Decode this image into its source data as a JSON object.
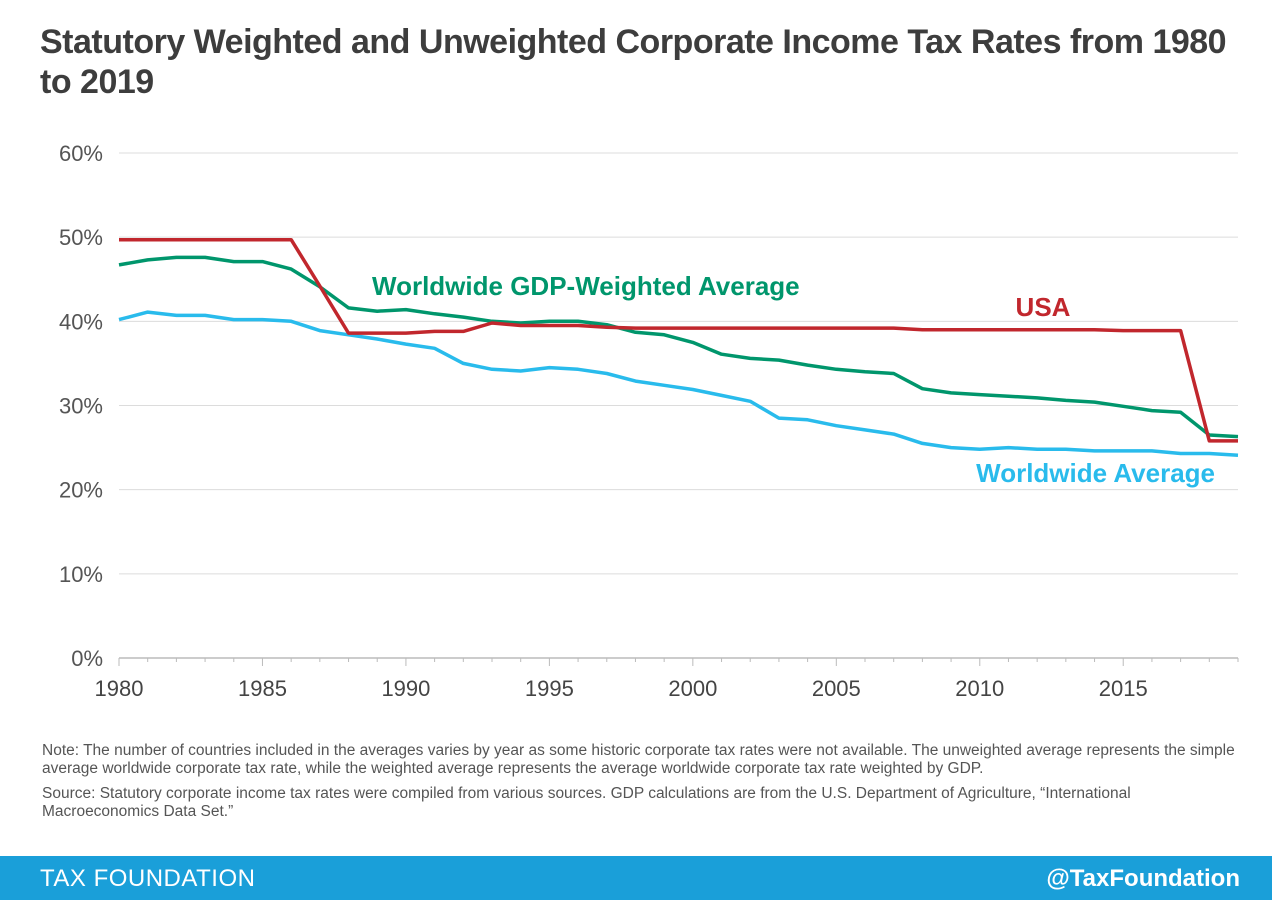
{
  "title": "Statutory Weighted and Unweighted Corporate Income Tax Rates from 1980 to 2019",
  "notes": {
    "note": "Note: The number of countries included in the averages varies by year as some historic corporate tax rates were not available. The unweighted average represents the simple average worldwide corporate tax rate, while the weighted average represents the average worldwide corporate tax rate weighted by GDP.",
    "source": "Source: Statutory corporate income tax rates were compiled from various sources. GDP calculations are from the U.S. Department of Agriculture, “International Macroeconomics Data Set.”"
  },
  "footer": {
    "brand": "TAX FOUNDATION",
    "handle": "@TaxFoundation"
  },
  "colors": {
    "usa": "#c1272d",
    "gdp_weighted": "#00966c",
    "worldwide": "#29bbec",
    "footer_bg": "#1a9fd9"
  },
  "chart_data": {
    "type": "line",
    "x": [
      1980,
      1981,
      1982,
      1983,
      1984,
      1985,
      1986,
      1987,
      1988,
      1989,
      1990,
      1991,
      1992,
      1993,
      1994,
      1995,
      1996,
      1997,
      1998,
      1999,
      2000,
      2001,
      2002,
      2003,
      2004,
      2005,
      2006,
      2007,
      2008,
      2009,
      2010,
      2011,
      2012,
      2013,
      2014,
      2015,
      2016,
      2017,
      2018,
      2019
    ],
    "xticks": [
      1980,
      1985,
      1990,
      1995,
      2000,
      2005,
      2010,
      2015
    ],
    "xtick_labels": [
      "1980",
      "1985",
      "1990",
      "1995",
      "2000",
      "2005",
      "2010",
      "2015"
    ],
    "xlim": [
      1980,
      2019
    ],
    "ylim": [
      0,
      60
    ],
    "yticks": [
      0,
      10,
      20,
      30,
      40,
      50,
      60
    ],
    "ytick_labels": [
      "0%",
      "10%",
      "20%",
      "30%",
      "40%",
      "50%",
      "60%"
    ],
    "grid": true,
    "series": [
      {
        "name": "USA",
        "color": "#c1272d",
        "values": [
          49.7,
          49.7,
          49.7,
          49.7,
          49.7,
          49.7,
          49.7,
          44.2,
          38.6,
          38.6,
          38.6,
          38.8,
          38.8,
          39.8,
          39.5,
          39.5,
          39.5,
          39.3,
          39.2,
          39.2,
          39.2,
          39.2,
          39.2,
          39.2,
          39.2,
          39.2,
          39.2,
          39.2,
          39.0,
          39.0,
          39.0,
          39.0,
          39.0,
          39.0,
          39.0,
          38.9,
          38.9,
          38.9,
          25.8,
          25.8
        ]
      },
      {
        "name": "Worldwide GDP-Weighted Average",
        "color": "#00966c",
        "values": [
          46.7,
          47.3,
          47.6,
          47.6,
          47.1,
          47.1,
          46.2,
          44.1,
          41.6,
          41.2,
          41.4,
          40.9,
          40.5,
          40.0,
          39.8,
          40.0,
          40.0,
          39.6,
          38.7,
          38.4,
          37.5,
          36.1,
          35.6,
          35.4,
          34.8,
          34.3,
          34.0,
          33.8,
          32.0,
          31.5,
          31.3,
          31.1,
          30.9,
          30.6,
          30.4,
          29.9,
          29.4,
          29.2,
          26.5,
          26.3
        ]
      },
      {
        "name": "Worldwide Average",
        "color": "#29bbec",
        "values": [
          40.2,
          41.1,
          40.7,
          40.7,
          40.2,
          40.2,
          40.0,
          38.9,
          38.4,
          37.9,
          37.3,
          36.8,
          35.0,
          34.3,
          34.1,
          34.5,
          34.3,
          33.8,
          32.9,
          32.4,
          31.9,
          31.2,
          30.5,
          28.5,
          28.3,
          27.6,
          27.1,
          26.6,
          25.5,
          25.0,
          24.8,
          25.0,
          24.8,
          24.8,
          24.6,
          24.6,
          24.6,
          24.3,
          24.3,
          24.1
        ]
      }
    ]
  }
}
